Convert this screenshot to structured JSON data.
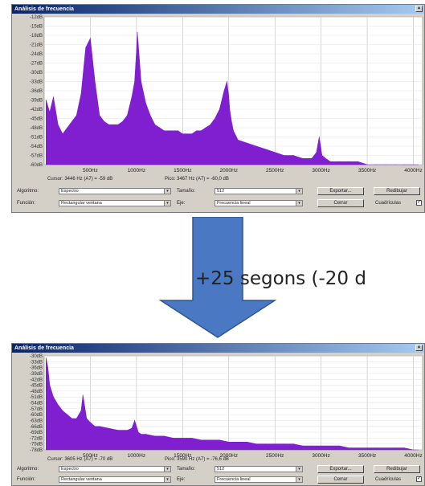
{
  "windows": [
    {
      "title": "Análisis de frecuencia",
      "y_labels": [
        "-12dB",
        "-15dB",
        "-18dB",
        "-21dB",
        "-24dB",
        "-27dB",
        "-30dB",
        "-33dB",
        "-36dB",
        "-39dB",
        "-42dB",
        "-45dB",
        "-48dB",
        "-51dB",
        "-54dB",
        "-57dB",
        "-60dB"
      ],
      "x_labels": [
        "500Hz",
        "1000Hz",
        "1500Hz",
        "2000Hz",
        "2500Hz",
        "3000Hz",
        "3500Hz",
        "4000Hz"
      ],
      "cursor_text": "Cursor: 3446 Hz (A7) = -59 dB",
      "peak_text": "Pico: 3467 Hz (A7) = -60,0 dB",
      "spectrum_color": "#7f1fcf",
      "chart_data": {
        "type": "area",
        "x": [
          20,
          60,
          100,
          150,
          200,
          250,
          300,
          350,
          400,
          450,
          500,
          550,
          600,
          650,
          700,
          750,
          800,
          850,
          900,
          950,
          980,
          1000,
          1010,
          1030,
          1050,
          1100,
          1150,
          1200,
          1250,
          1300,
          1350,
          1400,
          1450,
          1500,
          1550,
          1600,
          1650,
          1700,
          1750,
          1800,
          1850,
          1900,
          1950,
          1980,
          2000,
          2010,
          2030,
          2050,
          2100,
          2200,
          2300,
          2400,
          2500,
          2600,
          2700,
          2800,
          2900,
          2950,
          2980,
          3000,
          3010,
          3050,
          3100,
          3200,
          3300,
          3400,
          3500,
          3600,
          3700,
          3800,
          3900,
          4000,
          4050
        ],
        "y": [
          -39,
          -43,
          -38,
          -47,
          -50,
          -48,
          -46,
          -44,
          -37,
          -22,
          -19,
          -33,
          -44,
          -46,
          -47,
          -47,
          -47,
          -46,
          -44,
          -38,
          -33,
          -23,
          -17,
          -25,
          -33,
          -40,
          -44,
          -47,
          -48,
          -49,
          -49,
          -49,
          -49,
          -50,
          -50,
          -50,
          -49,
          -49,
          -48,
          -47,
          -45,
          -42,
          -36,
          -33,
          -38,
          -42,
          -46,
          -49,
          -52,
          -53,
          -54,
          -55,
          -56,
          -57,
          -57,
          -58,
          -58,
          -56,
          -51,
          -55,
          -57,
          -58,
          -59,
          -59,
          -59,
          -59,
          -60,
          -60,
          -60,
          -60,
          -60,
          -60,
          -60
        ],
        "xlim": [
          0,
          4100
        ],
        "ylim": [
          -60,
          -12
        ],
        "grid": true
      },
      "controls": {
        "algorithm_label": "Algoritmo:",
        "algorithm_value": "Espectro",
        "size_label": "Tamaño:",
        "size_value": "512",
        "export_label": "Exportar...",
        "replot_label": "Redibujar",
        "function_label": "Función:",
        "function_value": "Rectangular ventana",
        "axis_label": "Eje:",
        "axis_value": "Frecuencia lineal",
        "close_label": "Cerrar",
        "grid_label": "Cuadrículas"
      }
    },
    {
      "title": "Análisis de frecuencia",
      "y_labels": [
        "-30dB",
        "-33dB",
        "-36dB",
        "-39dB",
        "-42dB",
        "-45dB",
        "-48dB",
        "-51dB",
        "-54dB",
        "-57dB",
        "-60dB",
        "-63dB",
        "-66dB",
        "-69dB",
        "-72dB",
        "-75dB",
        "-78dB"
      ],
      "x_labels": [
        "500Hz",
        "1000Hz",
        "1500Hz",
        "2000Hz",
        "2500Hz",
        "3000Hz",
        "3500Hz",
        "4000Hz"
      ],
      "cursor_text": "Cursor: 3605 Hz (A7) = -70 dB",
      "peak_text": "Pico: 3590 Hz (A7) = -76,6 dB",
      "spectrum_color": "#7f1fcf",
      "chart_data": {
        "type": "area",
        "x": [
          20,
          40,
          60,
          100,
          150,
          200,
          250,
          300,
          350,
          400,
          420,
          440,
          460,
          500,
          550,
          600,
          700,
          800,
          900,
          950,
          980,
          1000,
          1020,
          1050,
          1100,
          1200,
          1300,
          1400,
          1500,
          1600,
          1700,
          1800,
          1900,
          2000,
          2100,
          2200,
          2300,
          2400,
          2500,
          2600,
          2700,
          2800,
          2900,
          3000,
          3100,
          3200,
          3300,
          3400,
          3500,
          3600,
          3700,
          3800,
          3900,
          4000,
          4050
        ],
        "y": [
          -31,
          -36,
          -45,
          -51,
          -55,
          -58,
          -60,
          -62,
          -62,
          -58,
          -50,
          -56,
          -62,
          -64,
          -66,
          -66,
          -67,
          -68,
          -68,
          -67,
          -63,
          -66,
          -69,
          -70,
          -70,
          -71,
          -71,
          -72,
          -72,
          -72,
          -73,
          -73,
          -73,
          -74,
          -74,
          -74,
          -75,
          -75,
          -75,
          -75,
          -75,
          -76,
          -76,
          -76,
          -76,
          -76,
          -77,
          -77,
          -77,
          -77,
          -77,
          -77,
          -77,
          -78,
          -78
        ],
        "xlim": [
          0,
          4100
        ],
        "ylim": [
          -78,
          -30
        ],
        "grid": true
      },
      "controls": {
        "algorithm_label": "Algoritmo:",
        "algorithm_value": "Espectro",
        "size_label": "Tamaño:",
        "size_value": "512",
        "export_label": "Exportar...",
        "replot_label": "Redibujar",
        "function_label": "Función:",
        "function_value": "Rectangular ventana",
        "axis_label": "Eje:",
        "axis_value": "Frecuencia lineal",
        "close_label": "Cerrar",
        "grid_label": "Cuadrículas"
      }
    }
  ],
  "caption": {
    "text": "+25 segons (-20 d",
    "arrow_color": "#4a78c2"
  }
}
